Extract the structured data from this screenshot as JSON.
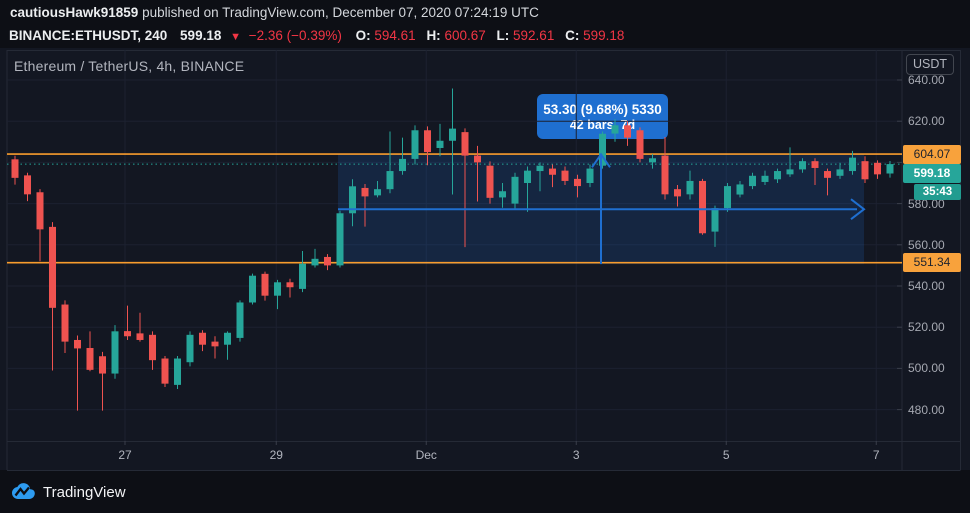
{
  "header": {
    "publish": {
      "username": "cautiousHawk91859",
      "rest": " published on TradingView.com, December 07, 2020 07:24:19 UTC"
    },
    "symbol_line": {
      "symbol": "BINANCE:ETHUSDT, 240",
      "last": "599.18",
      "direction": "▼",
      "change": "−2.36 (−0.39%)",
      "o_label": "O:",
      "o_value": "594.61",
      "h_label": "H:",
      "h_value": "600.67",
      "l_label": "L:",
      "l_value": "592.61",
      "c_label": "C:",
      "c_value": "599.18"
    }
  },
  "chart": {
    "title": "Ethereum / TetherUS, 4h, BINANCE",
    "currency_button": "USDT",
    "price_labels": {
      "resistance": "604.07",
      "last": "599.18",
      "countdown": "35:43",
      "support": "551.34"
    },
    "measure_label": {
      "line1": "53.30 (9.68%) 5330",
      "line2": "42 bars, 7d"
    }
  },
  "footer": {
    "brand": "TradingView"
  },
  "colors": {
    "background": "#131722",
    "up": "#26a69a",
    "down": "#ef5350",
    "level_orange": "#f89c2d",
    "measure_blue": "#1f6fd0",
    "header_red": "#f23645",
    "grid": "#1c2130",
    "border": "#252a36",
    "tick_dash": "#3a3e4a"
  },
  "chart_data": {
    "type": "candlestick",
    "symbol": "BINANCE:ETHUSDT",
    "interval": "4h",
    "title": "Ethereum / TetherUS, 4h, BINANCE",
    "y_axis_ticks": [
      640,
      620,
      600,
      580,
      560,
      540,
      520,
      500,
      480
    ],
    "y_axis_format": ".00",
    "x_axis_ticks": [
      {
        "label": "27",
        "bar": 8.8
      },
      {
        "label": "29",
        "bar": 20.9
      },
      {
        "label": "Dec",
        "bar": 32.9
      },
      {
        "label": "3",
        "bar": 44.9
      },
      {
        "label": "5",
        "bar": 56.9
      },
      {
        "label": "7",
        "bar": 68.9
      }
    ],
    "levels": [
      {
        "price": 604.07,
        "color": "orange"
      },
      {
        "price": 551.34,
        "color": "orange"
      }
    ],
    "last_price": 599.18,
    "range_tool": {
      "price_change": 53.3,
      "percent": 9.68,
      "ticks": "5330",
      "bars": 42,
      "duration": "7d",
      "bar_start": 25.84,
      "bar_end": 67.92,
      "price_start": 550.62,
      "price_end": 603.92
    },
    "candles": [
      [
        601.5,
        603.2,
        589.2,
        592.5
      ],
      [
        593.7,
        595.0,
        581.2,
        584.5
      ],
      [
        585.5,
        587.0,
        552.0,
        567.5
      ],
      [
        568.7,
        571.0,
        499.0,
        529.4
      ],
      [
        531.0,
        533.0,
        507.5,
        513.0
      ],
      [
        513.8,
        516.0,
        479.5,
        509.7
      ],
      [
        509.9,
        518.0,
        498.6,
        499.3
      ],
      [
        505.9,
        508.0,
        479.5,
        497.5
      ],
      [
        497.5,
        521.0,
        495.0,
        518.0
      ],
      [
        518.1,
        530.5,
        513.8,
        515.6
      ],
      [
        517.0,
        527.0,
        513.0,
        513.8
      ],
      [
        516.3,
        518.0,
        499.3,
        504.0
      ],
      [
        504.8,
        506.0,
        491.0,
        492.6
      ],
      [
        492.0,
        506.0,
        490.0,
        504.8
      ],
      [
        503.0,
        518.0,
        501.0,
        516.3
      ],
      [
        517.3,
        518.5,
        508.4,
        511.5
      ],
      [
        513.0,
        515.6,
        504.8,
        510.7
      ],
      [
        511.5,
        518.0,
        504.2,
        517.3
      ],
      [
        514.8,
        533.0,
        513.0,
        532.0
      ],
      [
        532.0,
        546.0,
        531.0,
        545.0
      ],
      [
        545.9,
        547.0,
        532.9,
        535.3
      ],
      [
        535.3,
        543.0,
        528.8,
        541.8
      ],
      [
        541.8,
        543.5,
        534.4,
        539.4
      ],
      [
        538.6,
        557.0,
        537.0,
        550.8
      ],
      [
        550.0,
        558.0,
        549.0,
        553.2
      ],
      [
        554.1,
        555.5,
        547.7,
        550.0
      ],
      [
        550.0,
        576.5,
        549.0,
        575.3
      ],
      [
        575.3,
        591.8,
        569.0,
        588.4
      ],
      [
        587.6,
        589.5,
        568.8,
        583.5
      ],
      [
        584.0,
        591.0,
        583.0,
        587.0
      ],
      [
        587.0,
        615.0,
        585.0,
        595.8
      ],
      [
        595.8,
        612.0,
        594.0,
        601.7
      ],
      [
        601.7,
        618.0,
        599.0,
        615.6
      ],
      [
        615.6,
        617.5,
        598.6,
        605.0
      ],
      [
        607.0,
        618.7,
        603.0,
        610.5
      ],
      [
        610.5,
        635.9,
        584.4,
        616.4
      ],
      [
        614.7,
        616.5,
        558.9,
        603.3
      ],
      [
        603.3,
        608.0,
        581.0,
        600.0
      ],
      [
        598.4,
        600.5,
        580.0,
        582.8
      ],
      [
        583.0,
        590.0,
        578.0,
        586.0
      ],
      [
        580.0,
        595.0,
        577.0,
        593.0
      ],
      [
        590.0,
        598.0,
        576.0,
        596.0
      ],
      [
        595.8,
        600.0,
        586.0,
        598.4
      ],
      [
        597.0,
        599.0,
        588.0,
        594.0
      ],
      [
        596.0,
        598.0,
        589.0,
        591.0
      ],
      [
        592.0,
        594.0,
        583.0,
        588.5
      ],
      [
        590.0,
        599.0,
        588.0,
        597.0
      ],
      [
        598.4,
        615.0,
        597.0,
        613.9
      ],
      [
        614.0,
        621.0,
        610.0,
        618.0
      ],
      [
        618.0,
        620.0,
        608.0,
        612.0
      ],
      [
        615.6,
        617.0,
        600.0,
        601.7
      ],
      [
        600.0,
        604.0,
        597.0,
        602.0
      ],
      [
        603.3,
        612.3,
        582.0,
        584.5
      ],
      [
        587.0,
        589.0,
        578.6,
        583.5
      ],
      [
        584.5,
        596.0,
        582.0,
        591.0
      ],
      [
        591.0,
        592.0,
        564.9,
        565.6
      ],
      [
        566.4,
        579.0,
        559.0,
        577.8
      ],
      [
        577.8,
        590.0,
        576.0,
        588.5
      ],
      [
        584.4,
        591.0,
        583.0,
        589.3
      ],
      [
        588.5,
        595.0,
        587.0,
        593.5
      ],
      [
        590.5,
        596.0,
        589.0,
        593.5
      ],
      [
        591.8,
        597.0,
        590.0,
        595.8
      ],
      [
        594.2,
        607.3,
        593.0,
        596.6
      ],
      [
        596.6,
        602.0,
        595.0,
        600.6
      ],
      [
        600.6,
        602.0,
        589.0,
        597.3
      ],
      [
        595.8,
        597.0,
        584.0,
        592.5
      ],
      [
        593.5,
        599.8,
        592.0,
        596.6
      ],
      [
        595.8,
        605.6,
        594.0,
        602.3
      ],
      [
        600.6,
        603.0,
        590.0,
        591.8
      ],
      [
        599.8,
        601.0,
        592.0,
        594.2
      ],
      [
        594.61,
        600.67,
        592.61,
        599.18
      ]
    ]
  }
}
